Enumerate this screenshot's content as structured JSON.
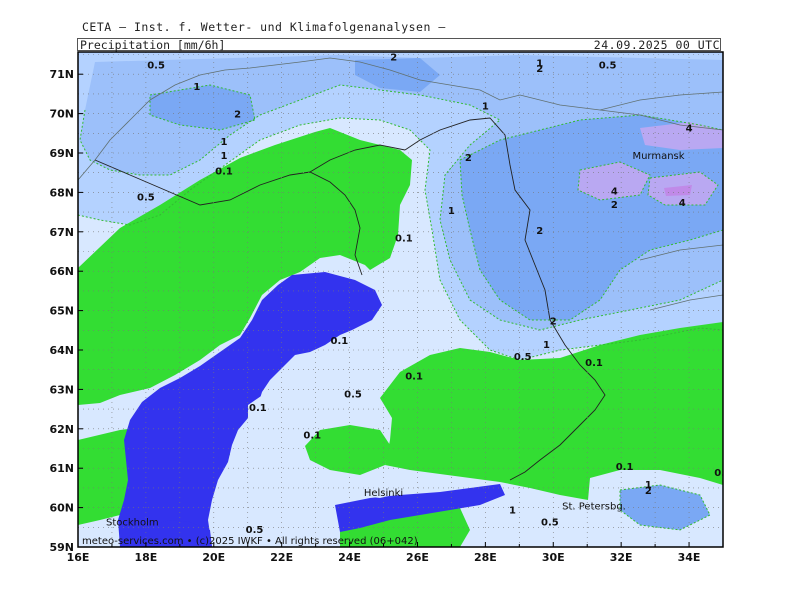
{
  "header": {
    "title": "CETA — Inst. f. Wetter- und Klimafolgenanalysen —",
    "variable": "Precipitation [mm/6h]",
    "valid_time": "24.09.2025 00 UTC"
  },
  "colors": {
    "sea": "#3333ee",
    "dry": "#33dd33",
    "lev_0_1": "#d8e8ff",
    "lev_0_5": "#b4d2ff",
    "lev_1": "#9cc0fa",
    "lev_2": "#7aa8f4",
    "lev_4": "#b9a8f2",
    "coast": "#607070",
    "border": "#222222",
    "grid": "#777777",
    "contour": "#33bb33"
  },
  "axes": {
    "lon_labels": [
      "16E",
      "18E",
      "20E",
      "22E",
      "24E",
      "26E",
      "28E",
      "30E",
      "32E",
      "34E"
    ],
    "lat_labels": [
      "71N",
      "70N",
      "69N",
      "68N",
      "67N",
      "66N",
      "65N",
      "64N",
      "63N",
      "62N",
      "61N",
      "60N",
      "59N"
    ]
  },
  "contour_labels": [
    {
      "text": "0.5",
      "lon": 18.3,
      "lat": 71.15
    },
    {
      "text": "1",
      "lon": 19.5,
      "lat": 70.6
    },
    {
      "text": "2",
      "lon": 20.7,
      "lat": 69.9
    },
    {
      "text": "1",
      "lon": 20.3,
      "lat": 69.2
    },
    {
      "text": "1",
      "lon": 20.3,
      "lat": 68.85
    },
    {
      "text": "0.1",
      "lon": 20.3,
      "lat": 68.45
    },
    {
      "text": "0.5",
      "lon": 18.0,
      "lat": 67.8
    },
    {
      "text": "2",
      "lon": 25.3,
      "lat": 71.35
    },
    {
      "text": "1",
      "lon": 29.6,
      "lat": 71.2
    },
    {
      "text": "2",
      "lon": 29.6,
      "lat": 71.05
    },
    {
      "text": "0.5",
      "lon": 31.6,
      "lat": 71.15
    },
    {
      "text": "1",
      "lon": 28.0,
      "lat": 70.1
    },
    {
      "text": "2",
      "lon": 27.5,
      "lat": 68.8
    },
    {
      "text": "1",
      "lon": 27.0,
      "lat": 67.45
    },
    {
      "text": "2",
      "lon": 29.6,
      "lat": 66.95
    },
    {
      "text": "4",
      "lon": 34.0,
      "lat": 69.55
    },
    {
      "text": "4",
      "lon": 31.8,
      "lat": 67.95
    },
    {
      "text": "2",
      "lon": 31.8,
      "lat": 67.6
    },
    {
      "text": "4",
      "lon": 33.8,
      "lat": 67.65
    },
    {
      "text": "2",
      "lon": 30.0,
      "lat": 64.65
    },
    {
      "text": "1",
      "lon": 29.8,
      "lat": 64.05
    },
    {
      "text": "0.5",
      "lon": 29.1,
      "lat": 63.75
    },
    {
      "text": "0.1",
      "lon": 31.2,
      "lat": 63.6
    },
    {
      "text": "0.1",
      "lon": 25.6,
      "lat": 66.75
    },
    {
      "text": "0.1",
      "lon": 23.7,
      "lat": 64.15
    },
    {
      "text": "0.1",
      "lon": 25.9,
      "lat": 63.25
    },
    {
      "text": "0.5",
      "lon": 24.1,
      "lat": 62.8
    },
    {
      "text": "0.1",
      "lon": 21.3,
      "lat": 62.45
    },
    {
      "text": "0.1",
      "lon": 22.9,
      "lat": 61.75
    },
    {
      "text": "0.1",
      "lon": 32.1,
      "lat": 60.95
    },
    {
      "text": "1",
      "lon": 32.8,
      "lat": 60.5
    },
    {
      "text": "2",
      "lon": 32.8,
      "lat": 60.35
    },
    {
      "text": "1",
      "lon": 28.8,
      "lat": 59.85
    },
    {
      "text": "0.5",
      "lon": 29.9,
      "lat": 59.55
    },
    {
      "text": "0.5",
      "lon": 21.2,
      "lat": 59.35
    },
    {
      "text": "0.",
      "lon": 34.9,
      "lat": 60.8
    }
  ],
  "cities": [
    {
      "name": "Murmansk",
      "lon": 33.1,
      "lat": 68.85
    },
    {
      "name": "Helsinki",
      "lon": 25.0,
      "lat": 60.3
    },
    {
      "name": "St. Petersbg.",
      "lon": 31.2,
      "lat": 59.95
    },
    {
      "name": "Stockholm",
      "lon": 17.6,
      "lat": 59.55
    }
  ],
  "footer": "meteo-services.com • (c)2025 IWKF • All rights reserved (06+042)"
}
